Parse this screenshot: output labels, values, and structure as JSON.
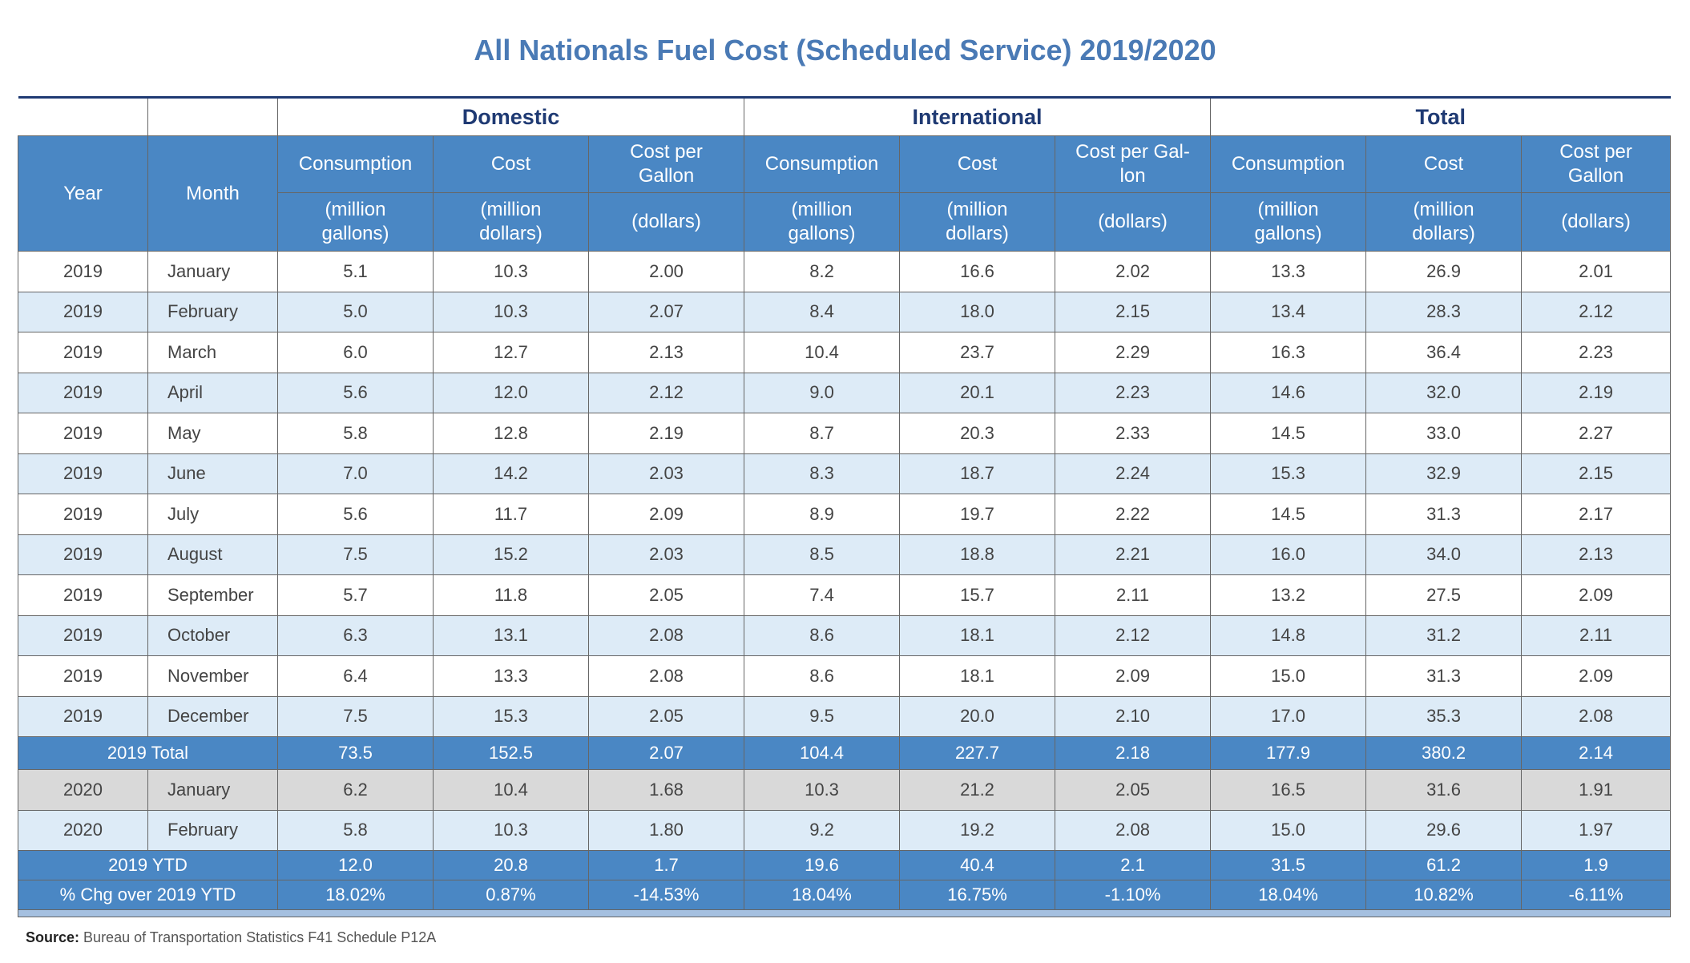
{
  "title": "All Nationals Fuel Cost (Scheduled Service) 2019/2020",
  "groups": {
    "domestic": "Domestic",
    "international": "International",
    "total": "Total"
  },
  "headers": {
    "year": "Year",
    "month": "Month",
    "consumption": "Consumption",
    "cost": "Cost",
    "cost_per_gallon": "Cost per Gallon",
    "cost_per_gallon_intl": "Cost per Gal-lon",
    "unit_gallons": "(million gallons)",
    "unit_dollars": "(million dollars)",
    "unit_cpg": "(dollars)"
  },
  "rows": [
    {
      "year": "2019",
      "month": "January",
      "d_cons": "5.1",
      "d_cost": "10.3",
      "d_cpg": "2.00",
      "i_cons": "8.2",
      "i_cost": "16.6",
      "i_cpg": "2.02",
      "t_cons": "13.3",
      "t_cost": "26.9",
      "t_cpg": "2.01"
    },
    {
      "year": "2019",
      "month": "February",
      "d_cons": "5.0",
      "d_cost": "10.3",
      "d_cpg": "2.07",
      "i_cons": "8.4",
      "i_cost": "18.0",
      "i_cpg": "2.15",
      "t_cons": "13.4",
      "t_cost": "28.3",
      "t_cpg": "2.12"
    },
    {
      "year": "2019",
      "month": "March",
      "d_cons": "6.0",
      "d_cost": "12.7",
      "d_cpg": "2.13",
      "i_cons": "10.4",
      "i_cost": "23.7",
      "i_cpg": "2.29",
      "t_cons": "16.3",
      "t_cost": "36.4",
      "t_cpg": "2.23"
    },
    {
      "year": "2019",
      "month": "April",
      "d_cons": "5.6",
      "d_cost": "12.0",
      "d_cpg": "2.12",
      "i_cons": "9.0",
      "i_cost": "20.1",
      "i_cpg": "2.23",
      "t_cons": "14.6",
      "t_cost": "32.0",
      "t_cpg": "2.19"
    },
    {
      "year": "2019",
      "month": "May",
      "d_cons": "5.8",
      "d_cost": "12.8",
      "d_cpg": "2.19",
      "i_cons": "8.7",
      "i_cost": "20.3",
      "i_cpg": "2.33",
      "t_cons": "14.5",
      "t_cost": "33.0",
      "t_cpg": "2.27"
    },
    {
      "year": "2019",
      "month": "June",
      "d_cons": "7.0",
      "d_cost": "14.2",
      "d_cpg": "2.03",
      "i_cons": "8.3",
      "i_cost": "18.7",
      "i_cpg": "2.24",
      "t_cons": "15.3",
      "t_cost": "32.9",
      "t_cpg": "2.15"
    },
    {
      "year": "2019",
      "month": "July",
      "d_cons": "5.6",
      "d_cost": "11.7",
      "d_cpg": "2.09",
      "i_cons": "8.9",
      "i_cost": "19.7",
      "i_cpg": "2.22",
      "t_cons": "14.5",
      "t_cost": "31.3",
      "t_cpg": "2.17"
    },
    {
      "year": "2019",
      "month": "August",
      "d_cons": "7.5",
      "d_cost": "15.2",
      "d_cpg": "2.03",
      "i_cons": "8.5",
      "i_cost": "18.8",
      "i_cpg": "2.21",
      "t_cons": "16.0",
      "t_cost": "34.0",
      "t_cpg": "2.13"
    },
    {
      "year": "2019",
      "month": "September",
      "d_cons": "5.7",
      "d_cost": "11.8",
      "d_cpg": "2.05",
      "i_cons": "7.4",
      "i_cost": "15.7",
      "i_cpg": "2.11",
      "t_cons": "13.2",
      "t_cost": "27.5",
      "t_cpg": "2.09"
    },
    {
      "year": "2019",
      "month": "October",
      "d_cons": "6.3",
      "d_cost": "13.1",
      "d_cpg": "2.08",
      "i_cons": "8.6",
      "i_cost": "18.1",
      "i_cpg": "2.12",
      "t_cons": "14.8",
      "t_cost": "31.2",
      "t_cpg": "2.11"
    },
    {
      "year": "2019",
      "month": "November",
      "d_cons": "6.4",
      "d_cost": "13.3",
      "d_cpg": "2.08",
      "i_cons": "8.6",
      "i_cost": "18.1",
      "i_cpg": "2.09",
      "t_cons": "15.0",
      "t_cost": "31.3",
      "t_cpg": "2.09"
    },
    {
      "year": "2019",
      "month": "December",
      "d_cons": "7.5",
      "d_cost": "15.3",
      "d_cpg": "2.05",
      "i_cons": "9.5",
      "i_cost": "20.0",
      "i_cpg": "2.10",
      "t_cons": "17.0",
      "t_cost": "35.3",
      "t_cpg": "2.08"
    }
  ],
  "total_2019": {
    "label": "2019 Total",
    "d_cons": "73.5",
    "d_cost": "152.5",
    "d_cpg": "2.07",
    "i_cons": "104.4",
    "i_cost": "227.7",
    "i_cpg": "2.18",
    "t_cons": "177.9",
    "t_cost": "380.2",
    "t_cpg": "2.14"
  },
  "rows_2020": [
    {
      "year": "2020",
      "month": "January",
      "d_cons": "6.2",
      "d_cost": "10.4",
      "d_cpg": "1.68",
      "i_cons": "10.3",
      "i_cost": "21.2",
      "i_cpg": "2.05",
      "t_cons": "16.5",
      "t_cost": "31.6",
      "t_cpg": "1.91"
    },
    {
      "year": "2020",
      "month": "February",
      "d_cons": "5.8",
      "d_cost": "10.3",
      "d_cpg": "1.80",
      "i_cons": "9.2",
      "i_cost": "19.2",
      "i_cpg": "2.08",
      "t_cons": "15.0",
      "t_cost": "29.6",
      "t_cpg": "1.97"
    }
  ],
  "ytd_2019": {
    "label": "2019 YTD",
    "d_cons": "12.0",
    "d_cost": "20.8",
    "d_cpg": "1.7",
    "i_cons": "19.6",
    "i_cost": "40.4",
    "i_cpg": "2.1",
    "t_cons": "31.5",
    "t_cost": "61.2",
    "t_cpg": "1.9"
  },
  "pct_chg": {
    "label": "% Chg over 2019 YTD",
    "d_cons": "18.02%",
    "d_cost": "0.87%",
    "d_cpg": "-14.53%",
    "i_cons": "18.04%",
    "i_cost": "16.75%",
    "i_cpg": "-1.10%",
    "t_cons": "18.04%",
    "t_cost": "10.82%",
    "t_cpg": "-6.11%"
  },
  "source": {
    "label": "Source:",
    "text": "Bureau of Transportation Statistics F41 Schedule P12A"
  },
  "colors": {
    "title": "#4a7ab5",
    "header_bg": "#4a87c4",
    "stripe": "#ddebf7",
    "gray_row": "#d9d9d9",
    "group_text": "#1f3a73"
  }
}
